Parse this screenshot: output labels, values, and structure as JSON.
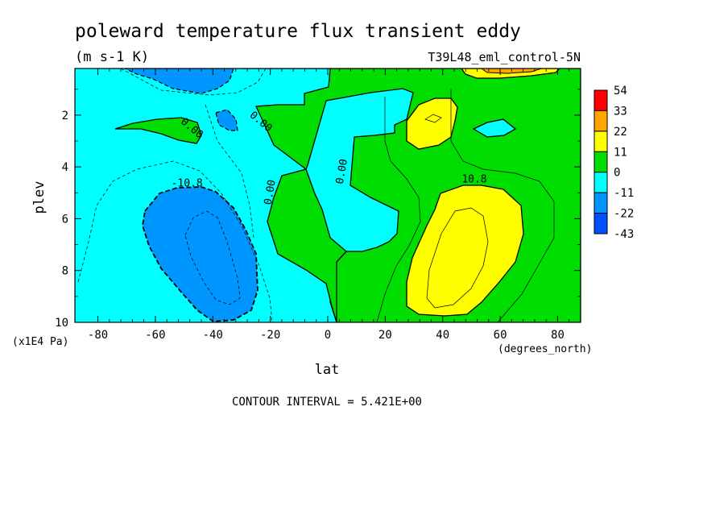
{
  "chart_data": {
    "type": "heatmap",
    "title": "poleward temperature flux transient eddy",
    "subtitle": "(m s-1 K)",
    "experiment": "T39L48_eml_control-5N",
    "xlabel": "lat",
    "ylabel": "plev",
    "xunits": "(degrees_north)",
    "yunits": "(x1E4 Pa)",
    "xlim": [
      -88,
      88
    ],
    "ylim": [
      0.2,
      10
    ],
    "y_reversed": true,
    "x_ticks": [
      -80,
      -60,
      -40,
      -20,
      0,
      20,
      40,
      60,
      80
    ],
    "y_ticks": [
      2,
      4,
      6,
      8,
      10
    ],
    "footer": "CONTOUR INTERVAL = 5.421E+00",
    "colorbar": {
      "labels": [
        "54",
        "33",
        "22",
        "11",
        "0",
        "-11",
        "-22",
        "-43"
      ],
      "colors": [
        "#ff0000",
        "#ffa500",
        "#ffff00",
        "#00dd00",
        "#00ffff",
        "#0096ff",
        "#0050ff"
      ]
    },
    "contour_labels": [
      {
        "text": "0.00",
        "lat": -48,
        "plev": 2.6,
        "angle": 40
      },
      {
        "text": "0.00",
        "lat": -24,
        "plev": 2.35,
        "angle": 40
      },
      {
        "text": "-10.8",
        "lat": -49,
        "plev": 4.75,
        "angle": 0
      },
      {
        "text": "0.00",
        "lat": -19,
        "plev": 5.0,
        "angle": -80
      },
      {
        "text": "0.00",
        "lat": 6,
        "plev": 4.2,
        "angle": -80
      },
      {
        "text": "10.8",
        "lat": 51,
        "plev": 4.6,
        "angle": 0
      }
    ]
  }
}
